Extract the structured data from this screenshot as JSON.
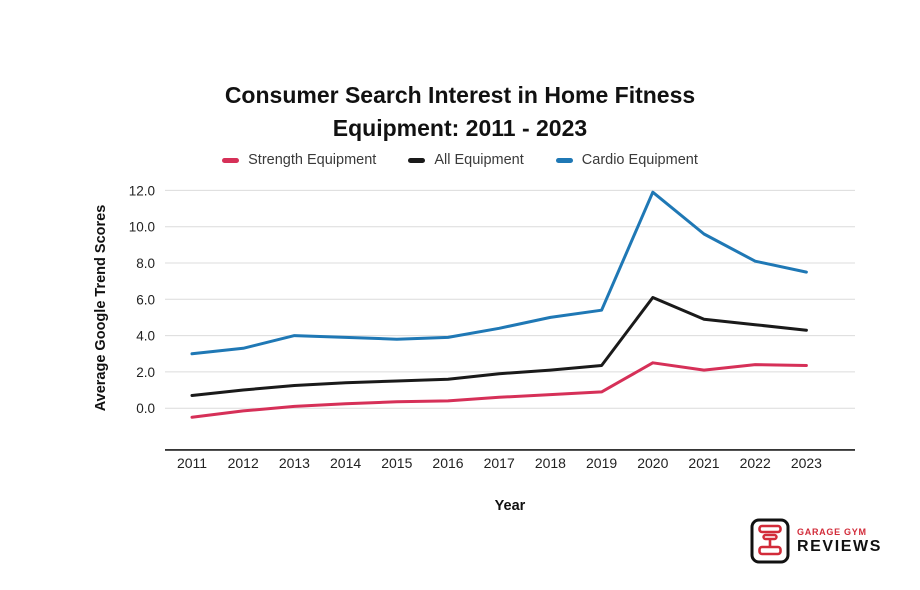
{
  "chart": {
    "title_line1": "Consumer Search Interest in Home Fitness",
    "title_line2": "Equipment: 2011 - 2023",
    "y_axis_title": "Average Google Trend Scores",
    "x_axis_title": "Year"
  },
  "chart_data": {
    "type": "line",
    "title": "Consumer Search Interest in Home Fitness Equipment: 2011 - 2023",
    "x": [
      "2011",
      "2012",
      "2013",
      "2014",
      "2015",
      "2016",
      "2017",
      "2018",
      "2019",
      "2020",
      "2021",
      "2022",
      "2023"
    ],
    "series": [
      {
        "name": "Strength Equipment",
        "color": "#D63058",
        "values": [
          -0.5,
          -0.15,
          0.1,
          0.25,
          0.35,
          0.4,
          0.6,
          0.75,
          0.9,
          2.5,
          2.1,
          2.4,
          2.35
        ]
      },
      {
        "name": "All Equipment",
        "color": "#1A1A1A",
        "values": [
          0.7,
          1.0,
          1.25,
          1.4,
          1.5,
          1.6,
          1.9,
          2.1,
          2.35,
          6.1,
          4.9,
          4.6,
          4.3
        ]
      },
      {
        "name": "Cardio Equipment",
        "color": "#1F78B5",
        "values": [
          3.0,
          3.3,
          4.0,
          3.9,
          3.8,
          3.9,
          4.4,
          5.0,
          5.4,
          11.9,
          9.6,
          8.1,
          7.5
        ]
      }
    ],
    "xlabel": "Year",
    "ylabel": "Average Google Trend Scores",
    "ylim": [
      -2.3,
      12.9
    ],
    "yticks": [
      0,
      2,
      4,
      6,
      8,
      10,
      12
    ],
    "ytick_labels": [
      "0.0",
      "2.0",
      "4.0",
      "6.0",
      "8.0",
      "10.0",
      "12.0"
    ],
    "grid": true,
    "grid_color": "#DCDCDC",
    "axis_color": "#1A1A1A",
    "tick_label_color": "#222222",
    "legend_position": "top"
  },
  "logo": {
    "line1": "GARAGE GYM",
    "line2": "REVIEWS",
    "accent_color": "#D22B39",
    "text_color": "#111111"
  }
}
